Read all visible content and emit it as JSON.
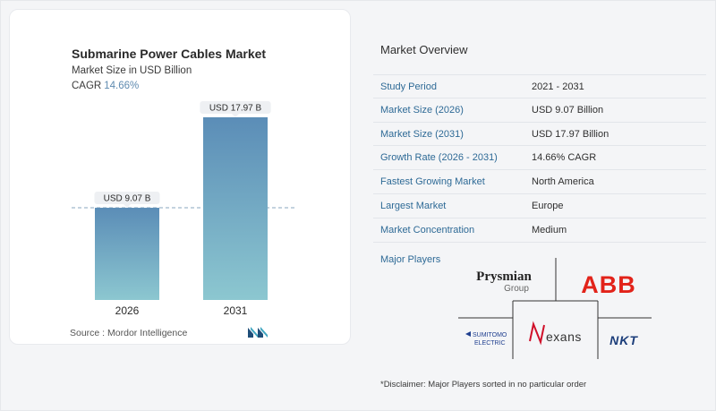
{
  "chart_data": {
    "type": "bar",
    "title": "Submarine Power Cables Market",
    "subtitle": "Market Size in USD Billion",
    "cagr_label": "CAGR",
    "cagr_value": "14.66%",
    "categories": [
      "2026",
      "2031"
    ],
    "values": [
      9.07,
      17.97
    ],
    "data_labels": [
      "USD 9.07 B",
      "USD 17.97 B"
    ],
    "ylim": [
      0,
      20
    ],
    "gridlines": false,
    "reference_line": "dashed line at first bar value",
    "bar_gradient": [
      "#5b8db7",
      "#8cc7d0"
    ]
  },
  "source": "Source :  Mordor Intelligence",
  "overview": {
    "title": "Market Overview",
    "rows": [
      {
        "label": "Study Period",
        "value": "2021 - 2031"
      },
      {
        "label": "Market Size (2026)",
        "value": "USD 9.07 Billion"
      },
      {
        "label": "Market Size (2031)",
        "value": "USD 17.97 Billion"
      },
      {
        "label": "Growth Rate (2026 - 2031)",
        "value": "14.66% CAGR"
      },
      {
        "label": "Fastest Growing Market",
        "value": "North America"
      },
      {
        "label": "Largest Market",
        "value": "Europe"
      },
      {
        "label": "Market Concentration",
        "value": "Medium"
      }
    ]
  },
  "players": {
    "title": "Major Players",
    "logos": {
      "prysmian": "Prysmian",
      "prysmian_sub": "Group",
      "abb": "ABB",
      "sumitomo_1": "SUMITOMO",
      "sumitomo_2": "ELECTRIC",
      "nexans": "exans",
      "nkt": "NKT"
    }
  },
  "disclaimer": "*Disclaimer: Major Players sorted in no particular order",
  "colors": {
    "accent_blue": "#2e6a96",
    "cagr_blue": "#5f8bb0",
    "abb_red": "#e2231a",
    "nexans_red": "#d0102a",
    "sumitomo_blue": "#1f3f8f",
    "nkt_blue": "#1b3d7a"
  }
}
